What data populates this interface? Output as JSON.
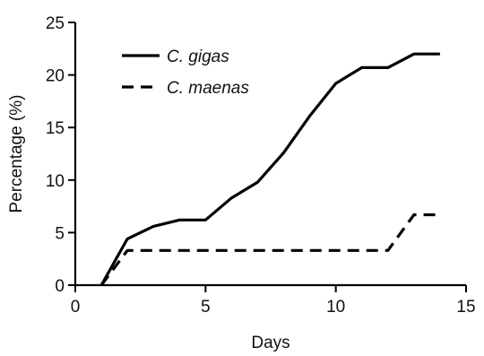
{
  "chart_data": {
    "type": "line",
    "title": "",
    "xlabel": "Days",
    "ylabel": "Percentage (%)",
    "xlim": [
      0,
      15
    ],
    "ylim": [
      0,
      25
    ],
    "xticks": [
      0,
      5,
      10,
      15
    ],
    "yticks": [
      0,
      5,
      10,
      15,
      20,
      25
    ],
    "grid": false,
    "legend_position": "top-left",
    "series": [
      {
        "name": "C. gigas",
        "style": "solid",
        "color": "#000000",
        "x": [
          1,
          2,
          3,
          4,
          5,
          6,
          7,
          8,
          9,
          10,
          11,
          12,
          13,
          14
        ],
        "y": [
          0,
          4.4,
          5.6,
          6.2,
          6.2,
          8.3,
          9.8,
          12.6,
          16.1,
          19.2,
          20.7,
          20.7,
          22.0,
          22.0
        ]
      },
      {
        "name": "C. maenas",
        "style": "dashed",
        "color": "#000000",
        "x": [
          1,
          2,
          3,
          4,
          5,
          6,
          7,
          8,
          9,
          10,
          11,
          12,
          13,
          14
        ],
        "y": [
          0,
          3.3,
          3.3,
          3.3,
          3.3,
          3.3,
          3.3,
          3.3,
          3.3,
          3.3,
          3.3,
          3.3,
          6.7,
          6.7
        ]
      }
    ]
  }
}
